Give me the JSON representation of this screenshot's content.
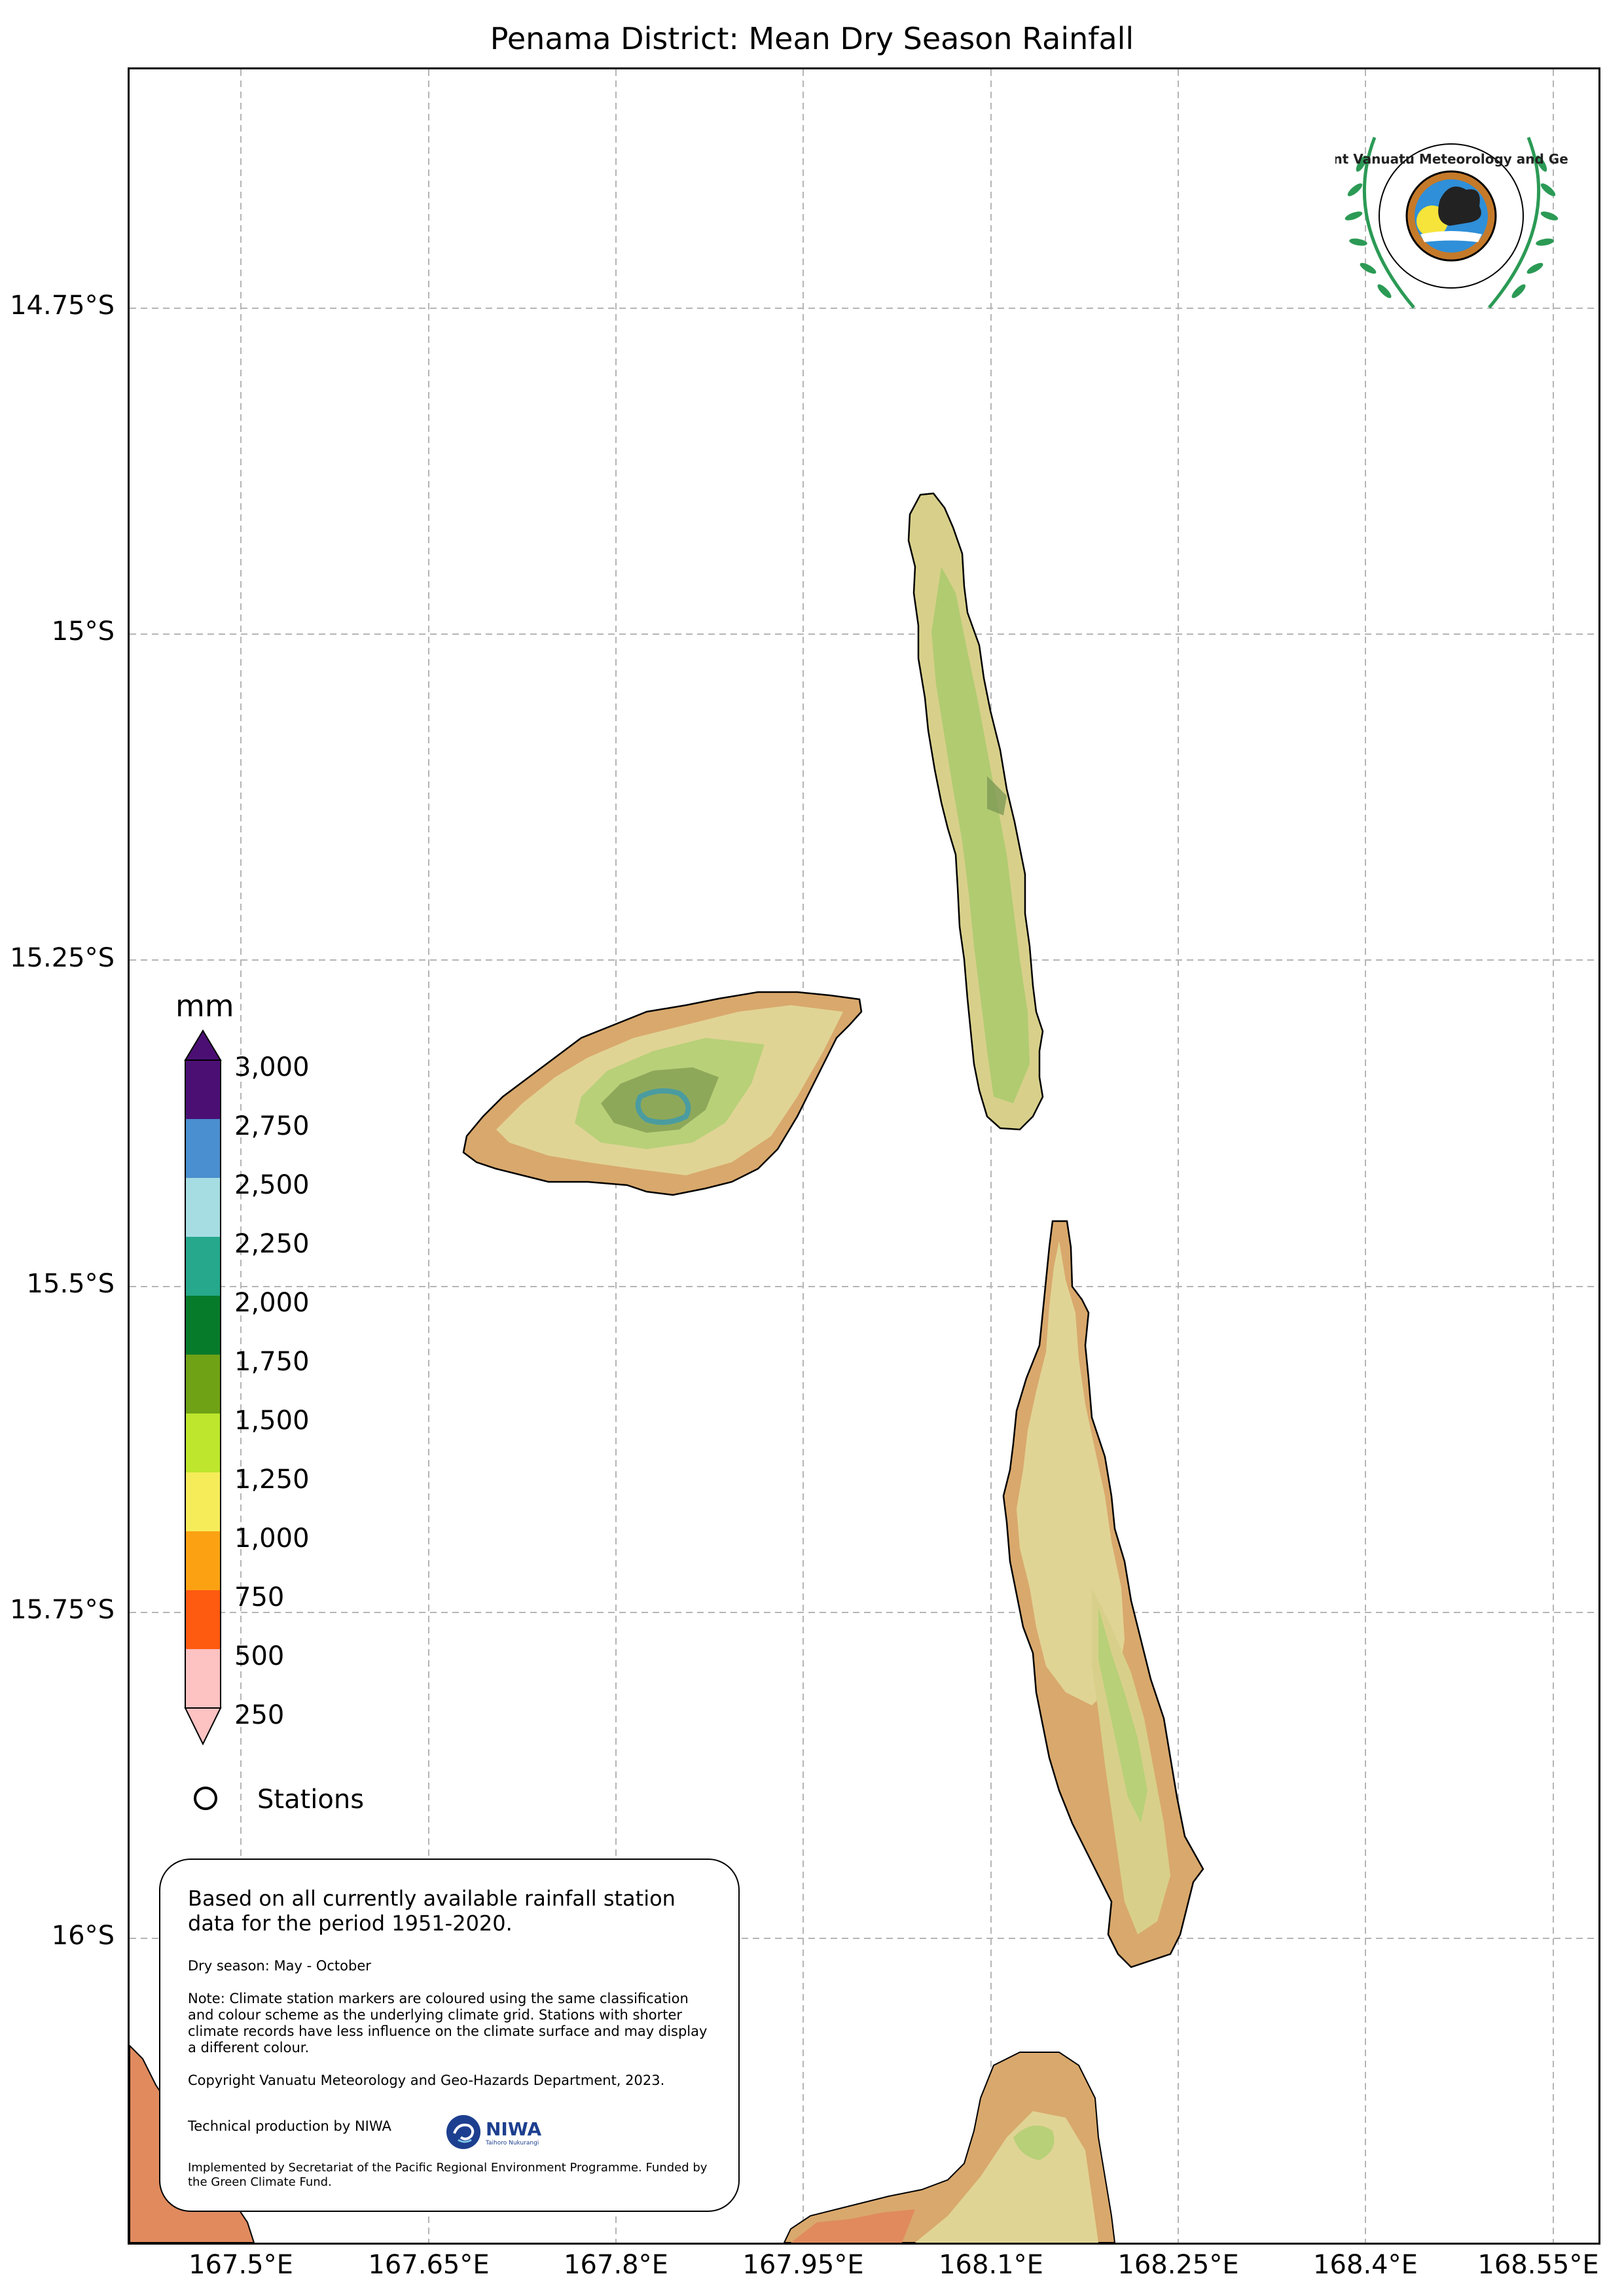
{
  "title": "Penama District: Mean Dry Season Rainfall",
  "axes": {
    "latitude_ticks": [
      "14.75°S",
      "15°S",
      "15.25°S",
      "15.5°S",
      "15.75°S",
      "16°S"
    ],
    "longitude_ticks": [
      "167.5°E",
      "167.65°E",
      "167.8°E",
      "167.95°E",
      "168.1°E",
      "168.25°E",
      "168.4°E",
      "168.55°E"
    ],
    "grid": "dashed"
  },
  "legend": {
    "unit": "mm",
    "levels": [
      "3,000",
      "2,750",
      "2,500",
      "2,250",
      "2,000",
      "1,750",
      "1,500",
      "1,250",
      "1,000",
      "750",
      "500",
      "250"
    ],
    "colors": [
      "#4b0f74",
      "#4a8fcf",
      "#a6dde3",
      "#25a88b",
      "#067b2a",
      "#6fa215",
      "#bde62c",
      "#f6ec5a",
      "#fca212",
      "#fe5a10",
      "#fdc2c2"
    ],
    "stations_label": "Stations"
  },
  "logo": {
    "text": "Department Vanuatu Meteorology and Geo-Hazards"
  },
  "info": {
    "main": "Based on all currently available rainfall station data for the period 1951-2020.",
    "season": "Dry season: May - October",
    "note": "Note: Climate station markers are coloured using the same classification and colour scheme as the underlying climate grid. Stations with shorter climate records have less influence on the climate surface and may display a different colour.",
    "copyright": "Copyright Vanuatu Meteorology and Geo-Hazards Department, 2023.",
    "production": "Technical production by NIWA",
    "niwa_name": "NIWA",
    "niwa_sub": "Taihoro Nukurangi",
    "funding": "Implemented by Secretariat of the Pacific Regional Environment Programme. Funded by the Green Climate Fund."
  }
}
